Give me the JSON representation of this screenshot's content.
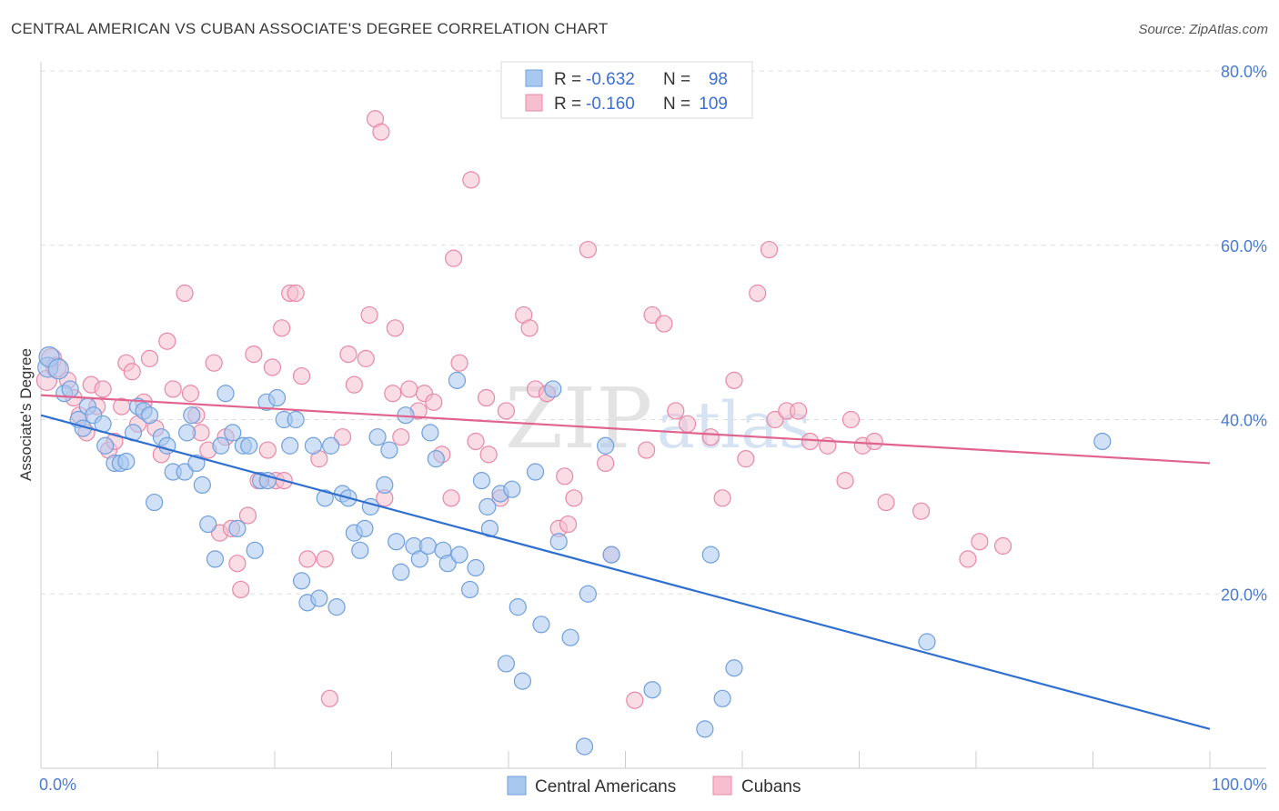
{
  "title": "CENTRAL AMERICAN VS CUBAN ASSOCIATE'S DEGREE CORRELATION CHART",
  "source": "Source: ZipAtlas.com",
  "watermark": {
    "zip": "ZIP",
    "atlas": "atlas"
  },
  "colors": {
    "blue_fill": "#a9c8f0",
    "blue_stroke": "#6f9fdc",
    "blue_line": "#2f6fd0",
    "pink_fill": "#f6bfd0",
    "pink_stroke": "#e888a8",
    "pink_line": "#e0648e",
    "grid": "#dddddd",
    "tick_text": "#4a7bd0"
  },
  "legend": {
    "rows": [
      {
        "r_label": "R =",
        "r_value": "-0.632",
        "n_label": "N =",
        "n_value": "98"
      },
      {
        "r_label": "R =",
        "r_value": "-0.160",
        "n_label": "N =",
        "n_value": "109"
      }
    ]
  },
  "bottom_legend": [
    "Central Americans",
    "Cubans"
  ],
  "chart_data": {
    "type": "scatter",
    "xlabel": "",
    "ylabel": "Associate's Degree",
    "xlim": [
      0,
      100
    ],
    "ylim": [
      0,
      80
    ],
    "x_tick_labels": [
      "0.0%",
      "100.0%"
    ],
    "y_ticks": [
      20,
      40,
      60,
      80
    ],
    "y_tick_labels": [
      "20.0%",
      "40.0%",
      "60.0%",
      "80.0%"
    ],
    "grid": "horizontal dashed",
    "legend_position": "top-center",
    "series": [
      {
        "name": "Central Americans",
        "color": "blue",
        "trend": {
          "x": [
            0,
            100
          ],
          "y": [
            40.5,
            4.5
          ]
        },
        "points": [
          [
            0.6,
            46
          ],
          [
            0.7,
            47.2
          ],
          [
            1.5,
            45.8
          ],
          [
            2,
            43
          ],
          [
            2.5,
            43.5
          ],
          [
            3.2,
            40
          ],
          [
            3.6,
            39
          ],
          [
            4,
            41.5
          ],
          [
            4.5,
            40.5
          ],
          [
            5.3,
            39.5
          ],
          [
            5.5,
            37
          ],
          [
            6.3,
            35
          ],
          [
            6.8,
            35
          ],
          [
            7.3,
            35.2
          ],
          [
            7.9,
            38.5
          ],
          [
            8.3,
            41.5
          ],
          [
            8.8,
            41
          ],
          [
            9.3,
            40.5
          ],
          [
            9.7,
            30.5
          ],
          [
            10.3,
            38
          ],
          [
            10.8,
            37
          ],
          [
            11.3,
            34
          ],
          [
            12.3,
            34
          ],
          [
            12.5,
            38.5
          ],
          [
            12.9,
            40.5
          ],
          [
            13.3,
            35
          ],
          [
            13.8,
            32.5
          ],
          [
            14.3,
            28
          ],
          [
            14.9,
            24
          ],
          [
            15.4,
            37
          ],
          [
            15.8,
            43
          ],
          [
            16.4,
            38.5
          ],
          [
            16.8,
            27.5
          ],
          [
            17.3,
            37
          ],
          [
            17.8,
            37
          ],
          [
            18.3,
            25
          ],
          [
            18.8,
            33
          ],
          [
            19.3,
            42
          ],
          [
            19.4,
            33
          ],
          [
            20.2,
            42.5
          ],
          [
            20.8,
            40
          ],
          [
            21.3,
            37
          ],
          [
            21.8,
            40
          ],
          [
            22.3,
            21.5
          ],
          [
            22.8,
            19
          ],
          [
            23.3,
            37
          ],
          [
            23.8,
            19.5
          ],
          [
            24.3,
            31
          ],
          [
            24.8,
            37
          ],
          [
            25.3,
            18.5
          ],
          [
            25.8,
            31.5
          ],
          [
            26.3,
            31
          ],
          [
            26.8,
            27
          ],
          [
            27.3,
            25
          ],
          [
            27.7,
            27.5
          ],
          [
            28.2,
            30
          ],
          [
            28.8,
            38
          ],
          [
            29.4,
            32.5
          ],
          [
            29.8,
            36.5
          ],
          [
            30.4,
            26
          ],
          [
            30.8,
            22.5
          ],
          [
            31.2,
            40.5
          ],
          [
            31.9,
            25.5
          ],
          [
            32.4,
            24
          ],
          [
            33.3,
            38.5
          ],
          [
            33.1,
            25.5
          ],
          [
            33.8,
            35.5
          ],
          [
            34.4,
            25
          ],
          [
            34.8,
            23.5
          ],
          [
            35.6,
            44.5
          ],
          [
            35.8,
            24.5
          ],
          [
            36.7,
            20.5
          ],
          [
            37.2,
            23
          ],
          [
            37.7,
            33
          ],
          [
            38.4,
            27.5
          ],
          [
            38.2,
            30
          ],
          [
            39.3,
            31.5
          ],
          [
            39.8,
            12
          ],
          [
            40.3,
            32
          ],
          [
            40.8,
            18.5
          ],
          [
            41.2,
            10
          ],
          [
            42.3,
            34
          ],
          [
            42.8,
            16.5
          ],
          [
            43.8,
            43.5
          ],
          [
            44.3,
            26
          ],
          [
            45.3,
            15
          ],
          [
            46.5,
            2.5
          ],
          [
            46.8,
            20
          ],
          [
            48.3,
            37
          ],
          [
            48.8,
            24.5
          ],
          [
            52.3,
            9
          ],
          [
            56.8,
            4.5
          ],
          [
            57.3,
            24.5
          ],
          [
            58.3,
            8
          ],
          [
            59.3,
            11.5
          ],
          [
            75.8,
            14.5
          ],
          [
            90.8,
            37.5
          ]
        ]
      },
      {
        "name": "Cubans",
        "color": "pink",
        "trend": {
          "x": [
            0,
            100
          ],
          "y": [
            42.8,
            35
          ]
        },
        "points": [
          [
            0.5,
            44.5
          ],
          [
            0.9,
            47
          ],
          [
            1.3,
            46
          ],
          [
            2.3,
            44.5
          ],
          [
            2.8,
            42.5
          ],
          [
            3.3,
            40.5
          ],
          [
            3.9,
            38.5
          ],
          [
            4.3,
            44
          ],
          [
            4.8,
            41.5
          ],
          [
            5.3,
            43.5
          ],
          [
            5.8,
            36.5
          ],
          [
            6.3,
            37.5
          ],
          [
            6.9,
            41.5
          ],
          [
            7.3,
            46.5
          ],
          [
            7.8,
            45.5
          ],
          [
            8.3,
            39.5
          ],
          [
            8.8,
            42
          ],
          [
            9.3,
            47
          ],
          [
            9.8,
            39
          ],
          [
            10.3,
            36
          ],
          [
            10.8,
            49
          ],
          [
            11.3,
            43.5
          ],
          [
            12.3,
            54.5
          ],
          [
            12.8,
            43
          ],
          [
            13.3,
            40.5
          ],
          [
            13.7,
            38.5
          ],
          [
            14.3,
            36.5
          ],
          [
            14.8,
            46.5
          ],
          [
            15.3,
            27
          ],
          [
            15.8,
            38
          ],
          [
            16.3,
            27.5
          ],
          [
            16.8,
            23.5
          ],
          [
            17.1,
            20.5
          ],
          [
            17.7,
            29
          ],
          [
            18.2,
            47.5
          ],
          [
            18.6,
            33
          ],
          [
            19.4,
            36.5
          ],
          [
            19.8,
            46
          ],
          [
            20.1,
            33
          ],
          [
            20.6,
            50.5
          ],
          [
            20.8,
            33
          ],
          [
            21.3,
            54.5
          ],
          [
            21.8,
            54.5
          ],
          [
            22.3,
            45
          ],
          [
            22.8,
            24
          ],
          [
            23.8,
            35.5
          ],
          [
            24.3,
            24
          ],
          [
            24.7,
            8
          ],
          [
            25.8,
            38
          ],
          [
            26.3,
            47.5
          ],
          [
            26.8,
            44
          ],
          [
            27.8,
            47
          ],
          [
            28.1,
            52
          ],
          [
            28.6,
            74.5
          ],
          [
            29.1,
            73
          ],
          [
            29.4,
            31
          ],
          [
            30.1,
            43
          ],
          [
            30.3,
            50.5
          ],
          [
            30.8,
            38
          ],
          [
            31.5,
            43.5
          ],
          [
            32.3,
            41
          ],
          [
            32.8,
            43
          ],
          [
            33.6,
            42
          ],
          [
            34.3,
            36
          ],
          [
            35.1,
            31
          ],
          [
            35.3,
            58.5
          ],
          [
            35.8,
            46.5
          ],
          [
            36.8,
            67.5
          ],
          [
            37.2,
            37.5
          ],
          [
            38.1,
            42.5
          ],
          [
            38.3,
            36
          ],
          [
            39.3,
            31
          ],
          [
            39.8,
            41
          ],
          [
            41.3,
            52
          ],
          [
            41.8,
            50.5
          ],
          [
            42.3,
            43.5
          ],
          [
            43.3,
            43
          ],
          [
            44.3,
            27.5
          ],
          [
            44.8,
            33.5
          ],
          [
            45.1,
            28
          ],
          [
            45.6,
            31
          ],
          [
            46.8,
            59.5
          ],
          [
            48.3,
            35
          ],
          [
            48.8,
            24.5
          ],
          [
            50.8,
            7.8
          ],
          [
            51.8,
            36.5
          ],
          [
            52.3,
            52
          ],
          [
            53.3,
            51
          ],
          [
            54.3,
            41
          ],
          [
            55.3,
            39.5
          ],
          [
            57.3,
            38
          ],
          [
            58.3,
            31
          ],
          [
            59.3,
            44.5
          ],
          [
            60.3,
            35.5
          ],
          [
            61.3,
            54.5
          ],
          [
            62.3,
            59.5
          ],
          [
            62.8,
            40
          ],
          [
            63.8,
            41
          ],
          [
            64.8,
            41
          ],
          [
            65.8,
            37.5
          ],
          [
            67.3,
            37
          ],
          [
            68.8,
            33
          ],
          [
            69.3,
            40
          ],
          [
            70.3,
            37
          ],
          [
            71.3,
            37.5
          ],
          [
            72.3,
            30.5
          ],
          [
            75.3,
            29.5
          ],
          [
            79.3,
            24
          ],
          [
            80.3,
            26
          ],
          [
            82.3,
            25.5
          ]
        ]
      }
    ]
  }
}
